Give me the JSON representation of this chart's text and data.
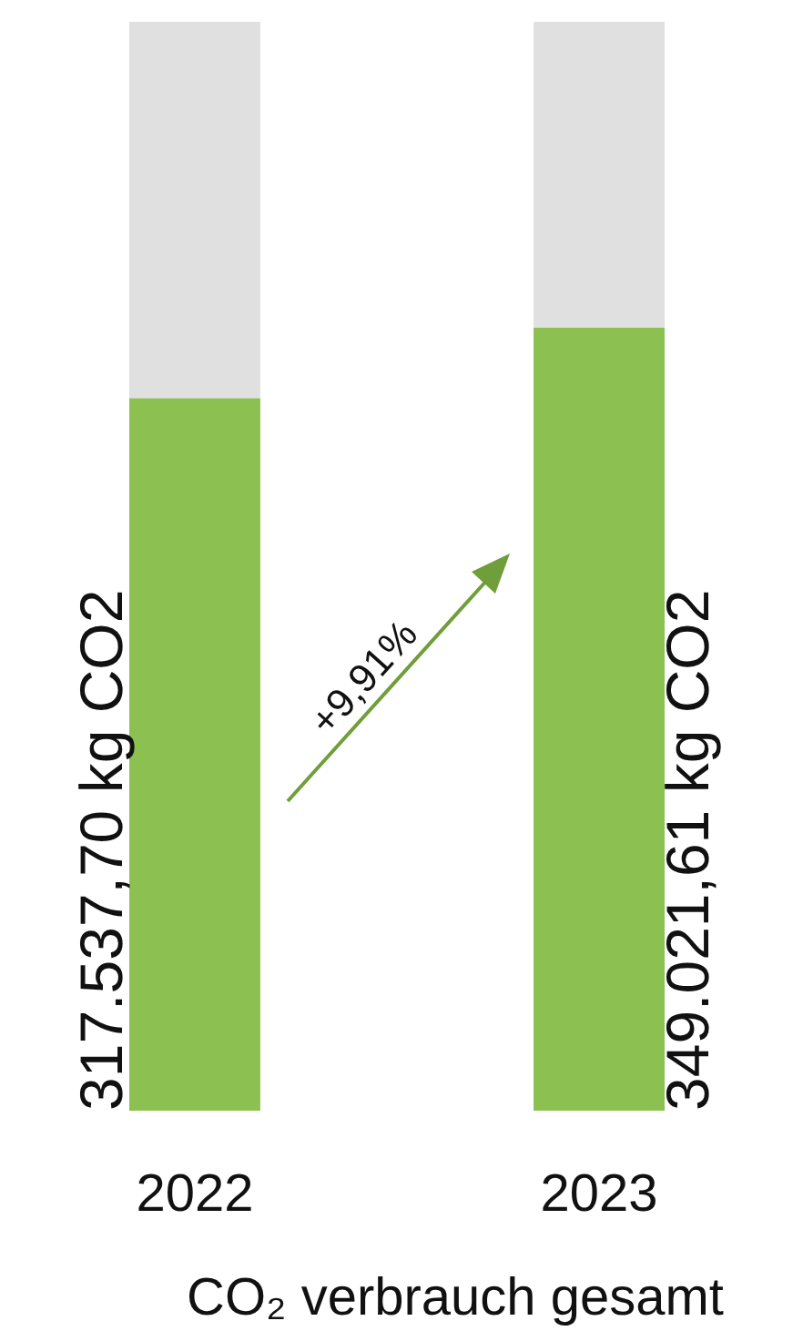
{
  "chart_data": {
    "type": "bar",
    "categories": [
      "2022",
      "2023"
    ],
    "values": [
      317537.7,
      349021.61
    ],
    "value_labels": [
      "317.537,70 kg CO2",
      "349.021,61 kg CO2"
    ],
    "color": "#8cc152",
    "xlabel": "CO₂ verbrauch gesamt",
    "annotations": [
      "+9,91%"
    ]
  }
}
